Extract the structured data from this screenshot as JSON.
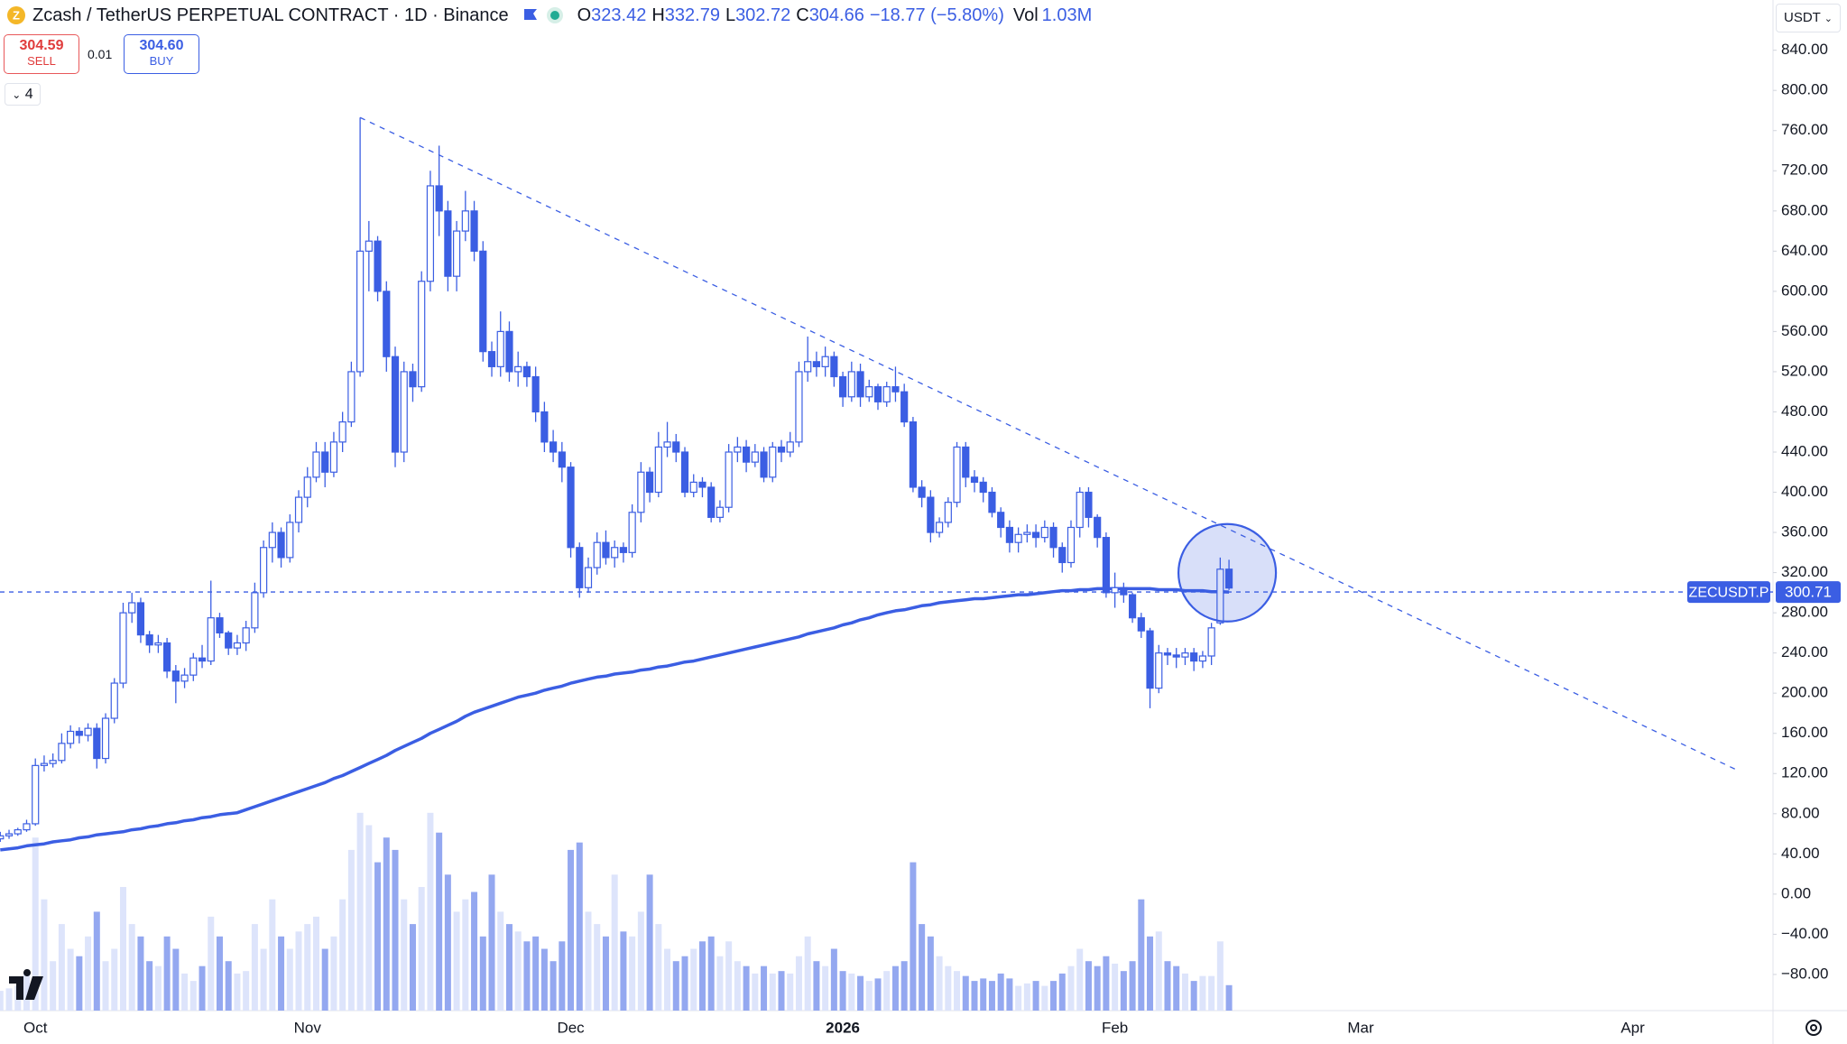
{
  "chart_data": {
    "type": "candlestick",
    "header": {
      "symbol": "Zcash / TetherUS PERPETUAL CONTRACT · 1D · Binance",
      "ohlc_prefixes": [
        "O",
        "H",
        "L",
        "C"
      ],
      "change": "−18.77 (−5.80%)",
      "vol_prefix": "Vol",
      "vol_value": "1.03M"
    },
    "trade": {
      "sell_price": "304.59",
      "sell": "SELL",
      "spread": "0.01",
      "buy_price": "304.60",
      "buy": "BUY"
    },
    "indicators_count": "4",
    "currency": "USDT",
    "price_label": "ZECUSDT.P",
    "up_color": "#ffffff",
    "down_color": "#3b5ee3",
    "volume_up_color": "#dde4fb",
    "volume_down_color": "#94a8f0",
    "grid": false,
    "ylim": [
      -116,
      890
    ],
    "yticks": [
      {
        "value": 840,
        "label": "840.00"
      },
      {
        "value": 800,
        "label": "800.00"
      },
      {
        "value": 760,
        "label": "760.00"
      },
      {
        "value": 720,
        "label": "720.00"
      },
      {
        "value": 680,
        "label": "680.00"
      },
      {
        "value": 640,
        "label": "640.00"
      },
      {
        "value": 600,
        "label": "600.00"
      },
      {
        "value": 560,
        "label": "560.00"
      },
      {
        "value": 520,
        "label": "520.00"
      },
      {
        "value": 480,
        "label": "480.00"
      },
      {
        "value": 440,
        "label": "440.00"
      },
      {
        "value": 400,
        "label": "400.00"
      },
      {
        "value": 360,
        "label": "360.00"
      },
      {
        "value": 320,
        "label": "320.00"
      },
      {
        "value": 280,
        "label": "280.00"
      },
      {
        "value": 240,
        "label": "240.00"
      },
      {
        "value": 200,
        "label": "200.00"
      },
      {
        "value": 160,
        "label": "160.00"
      },
      {
        "value": 120,
        "label": "120.00"
      },
      {
        "value": 80,
        "label": "80.00"
      },
      {
        "value": 40,
        "label": "40.00"
      },
      {
        "value": 0,
        "label": "0.00"
      },
      {
        "value": -40,
        "label": "−40.00"
      },
      {
        "value": -80,
        "label": "−80.00"
      }
    ],
    "categories": [
      null,
      null,
      null,
      null,
      "Oct",
      null,
      null,
      null,
      null,
      null,
      null,
      null,
      null,
      null,
      null,
      null,
      null,
      null,
      null,
      null,
      null,
      null,
      null,
      null,
      null,
      null,
      null,
      null,
      null,
      null,
      null,
      null,
      null,
      null,
      null,
      "Nov",
      null,
      null,
      null,
      null,
      null,
      null,
      null,
      null,
      null,
      null,
      null,
      null,
      null,
      null,
      null,
      null,
      null,
      null,
      null,
      null,
      null,
      null,
      null,
      null,
      null,
      null,
      null,
      null,
      null,
      "Dec",
      null,
      null,
      null,
      null,
      null,
      null,
      null,
      null,
      null,
      null,
      null,
      null,
      null,
      null,
      null,
      null,
      null,
      null,
      null,
      null,
      null,
      null,
      null,
      null,
      null,
      null,
      null,
      null,
      null,
      null,
      "2026",
      null,
      null,
      null,
      null,
      null,
      null,
      null,
      null,
      null,
      null,
      null,
      null,
      null,
      null,
      null,
      null,
      null,
      null,
      null,
      null,
      null,
      null,
      null,
      null,
      null,
      null,
      null,
      null,
      null,
      null,
      "Feb",
      null,
      null,
      null,
      null,
      null,
      null,
      null,
      null,
      null,
      null,
      null,
      null,
      null,
      null,
      null,
      null,
      null,
      null,
      null,
      null,
      null,
      null,
      null,
      null,
      null,
      null,
      null,
      "Mar",
      null,
      null,
      null,
      null,
      null,
      null,
      null,
      null,
      null,
      null,
      null,
      null,
      null,
      null,
      null,
      null,
      null,
      null,
      null,
      null,
      null,
      null,
      null,
      null,
      null,
      null,
      null,
      null,
      null,
      null,
      "Apr",
      null,
      null,
      null,
      null,
      null,
      null,
      null,
      null,
      null,
      null,
      null,
      null
    ],
    "open": [
      55,
      58,
      60,
      64,
      70,
      128,
      130,
      133,
      150,
      162,
      158,
      165,
      135,
      175,
      210,
      280,
      290,
      258,
      248,
      250,
      222,
      212,
      218,
      235,
      232,
      275,
      260,
      245,
      250,
      265,
      300,
      345,
      360,
      335,
      370,
      395,
      415,
      440,
      420,
      450,
      470,
      520,
      640,
      650,
      600,
      535,
      440,
      520,
      505,
      610,
      705,
      680,
      615,
      660,
      680,
      640,
      540,
      525,
      560,
      520,
      525,
      515,
      480,
      450,
      440,
      425,
      345,
      305,
      325,
      350,
      335,
      345,
      340,
      380,
      420,
      400,
      445,
      450,
      440,
      400,
      410,
      405,
      375,
      385,
      440,
      445,
      430,
      440,
      415,
      445,
      440,
      450,
      520,
      530,
      525,
      535,
      515,
      495,
      520,
      495,
      505,
      490,
      505,
      500,
      470,
      405,
      395,
      360,
      370,
      390,
      445,
      415,
      410,
      400,
      380,
      365,
      350,
      358,
      360,
      355,
      365,
      345,
      330,
      365,
      400,
      375,
      355,
      300,
      305,
      298,
      275,
      262,
      205,
      240,
      238,
      236,
      240,
      232,
      237,
      270,
      323.42,
      null,
      null,
      null,
      null,
      null,
      null,
      null,
      null,
      null,
      null,
      null,
      null,
      null,
      null,
      null,
      null,
      null,
      null,
      null,
      null,
      null,
      null,
      null,
      null,
      null,
      null,
      null,
      null,
      null,
      null,
      null,
      null,
      null,
      null,
      null,
      null,
      null,
      null,
      null,
      null,
      null,
      null,
      null,
      null,
      null,
      null,
      null,
      null,
      null,
      null,
      null,
      null,
      null,
      null,
      null,
      null,
      null,
      null
    ],
    "high": [
      62,
      64,
      66,
      74,
      135,
      138,
      140,
      160,
      168,
      166,
      170,
      170,
      180,
      215,
      290,
      300,
      295,
      262,
      258,
      255,
      228,
      225,
      240,
      248,
      312,
      280,
      262,
      258,
      272,
      310,
      352,
      370,
      365,
      378,
      402,
      425,
      450,
      450,
      460,
      480,
      530,
      773,
      670,
      655,
      610,
      545,
      530,
      528,
      620,
      720,
      745,
      690,
      670,
      700,
      690,
      650,
      550,
      580,
      570,
      540,
      530,
      525,
      490,
      462,
      450,
      430,
      350,
      335,
      360,
      362,
      352,
      350,
      388,
      430,
      425,
      460,
      470,
      458,
      445,
      418,
      415,
      410,
      392,
      448,
      455,
      452,
      448,
      445,
      450,
      452,
      460,
      530,
      555,
      540,
      545,
      540,
      520,
      530,
      528,
      512,
      508,
      510,
      525,
      508,
      475,
      412,
      402,
      375,
      395,
      450,
      450,
      422,
      415,
      405,
      385,
      372,
      365,
      368,
      368,
      372,
      370,
      350,
      372,
      405,
      405,
      378,
      360,
      320,
      310,
      300,
      280,
      265,
      248,
      245,
      245,
      245,
      245,
      242,
      270,
      335,
      332.79,
      null,
      null,
      null,
      null,
      null,
      null,
      null,
      null,
      null,
      null,
      null,
      null,
      null,
      null,
      null,
      null,
      null,
      null,
      null,
      null,
      null,
      null,
      null,
      null,
      null,
      null,
      null,
      null,
      null,
      null,
      null,
      null,
      null,
      null,
      null,
      null,
      null,
      null,
      null,
      null,
      null,
      null,
      null,
      null,
      null,
      null,
      null,
      null,
      null,
      null,
      null,
      null,
      null,
      null,
      null,
      null,
      null,
      null
    ],
    "low": [
      52,
      55,
      58,
      62,
      68,
      122,
      126,
      130,
      145,
      150,
      152,
      125,
      130,
      170,
      205,
      270,
      250,
      240,
      240,
      215,
      190,
      205,
      212,
      225,
      228,
      255,
      238,
      238,
      242,
      260,
      295,
      330,
      325,
      330,
      360,
      385,
      410,
      405,
      415,
      440,
      465,
      515,
      600,
      590,
      520,
      425,
      430,
      490,
      500,
      600,
      655,
      600,
      600,
      650,
      630,
      530,
      515,
      515,
      510,
      505,
      505,
      470,
      440,
      430,
      410,
      335,
      295,
      300,
      318,
      328,
      325,
      330,
      335,
      370,
      390,
      395,
      435,
      430,
      395,
      395,
      395,
      370,
      370,
      380,
      430,
      420,
      425,
      410,
      410,
      430,
      435,
      445,
      510,
      515,
      515,
      505,
      485,
      490,
      485,
      490,
      482,
      485,
      490,
      465,
      400,
      385,
      350,
      355,
      365,
      385,
      405,
      400,
      390,
      375,
      355,
      340,
      340,
      350,
      345,
      350,
      335,
      320,
      325,
      355,
      365,
      345,
      295,
      285,
      290,
      270,
      255,
      185,
      200,
      228,
      225,
      228,
      222,
      225,
      228,
      268,
      302.72,
      null,
      null,
      null,
      null,
      null,
      null,
      null,
      null,
      null,
      null,
      null,
      null,
      null,
      null,
      null,
      null,
      null,
      null,
      null,
      null,
      null,
      null,
      null,
      null,
      null,
      null,
      null,
      null,
      null,
      null,
      null,
      null,
      null,
      null,
      null,
      null,
      null,
      null,
      null,
      null,
      null,
      null,
      null,
      null,
      null,
      null,
      null,
      null,
      null,
      null,
      null,
      null,
      null,
      null,
      null,
      null,
      null,
      null
    ],
    "close": [
      58,
      60,
      64,
      70,
      128,
      130,
      133,
      150,
      162,
      158,
      165,
      135,
      175,
      210,
      280,
      290,
      258,
      248,
      250,
      222,
      212,
      218,
      235,
      232,
      275,
      260,
      245,
      250,
      265,
      300,
      345,
      360,
      335,
      370,
      395,
      415,
      440,
      420,
      450,
      470,
      520,
      640,
      650,
      600,
      535,
      440,
      520,
      505,
      610,
      705,
      680,
      615,
      660,
      680,
      640,
      540,
      525,
      560,
      520,
      525,
      515,
      480,
      450,
      440,
      425,
      345,
      305,
      325,
      350,
      335,
      345,
      340,
      380,
      420,
      400,
      445,
      450,
      440,
      400,
      410,
      405,
      375,
      385,
      440,
      445,
      430,
      440,
      415,
      445,
      440,
      450,
      520,
      530,
      525,
      535,
      515,
      495,
      520,
      495,
      505,
      490,
      505,
      500,
      470,
      405,
      395,
      360,
      370,
      390,
      445,
      415,
      410,
      400,
      380,
      365,
      350,
      358,
      360,
      355,
      365,
      345,
      330,
      365,
      400,
      375,
      355,
      300,
      305,
      298,
      275,
      262,
      205,
      240,
      238,
      236,
      240,
      232,
      237,
      265,
      323.42,
      304.66,
      null,
      null,
      null,
      null,
      null,
      null,
      null,
      null,
      null,
      null,
      null,
      null,
      null,
      null,
      null,
      null,
      null,
      null,
      null,
      null,
      null,
      null,
      null,
      null,
      null,
      null,
      null,
      null,
      null,
      null,
      null,
      null,
      null,
      null,
      null,
      null,
      null,
      null,
      null,
      null,
      null,
      null,
      null,
      null,
      null,
      null,
      null,
      null,
      null,
      null,
      null,
      null,
      null,
      null,
      null,
      null,
      null,
      null
    ],
    "volume": [
      0.8,
      0.9,
      1.0,
      1.5,
      7.0,
      4.5,
      2.0,
      3.5,
      2.5,
      2.2,
      3.0,
      4.0,
      2.0,
      2.5,
      5.0,
      3.5,
      3.0,
      2.0,
      1.8,
      3.0,
      2.5,
      1.5,
      1.2,
      1.8,
      3.8,
      3.0,
      2.0,
      1.5,
      1.6,
      3.5,
      2.5,
      4.5,
      3.0,
      2.5,
      3.2,
      3.5,
      3.8,
      2.5,
      3.0,
      4.5,
      6.5,
      8.0,
      7.5,
      6.0,
      7.0,
      6.5,
      4.5,
      3.5,
      5.0,
      8.0,
      7.2,
      5.5,
      4.0,
      4.5,
      4.8,
      3.0,
      5.5,
      4.0,
      3.5,
      3.2,
      2.8,
      3.0,
      2.5,
      2.0,
      2.8,
      6.5,
      6.8,
      4.0,
      3.5,
      3.0,
      5.5,
      3.2,
      3.0,
      4.0,
      5.5,
      3.5,
      2.5,
      2.0,
      2.2,
      2.5,
      2.8,
      3.0,
      2.2,
      2.8,
      2.0,
      1.8,
      1.5,
      1.8,
      1.5,
      1.6,
      1.5,
      2.2,
      3.0,
      2.0,
      1.8,
      2.5,
      1.6,
      1.5,
      1.4,
      1.2,
      1.3,
      1.6,
      1.8,
      2.0,
      6.0,
      3.5,
      3.0,
      2.2,
      1.8,
      1.6,
      1.4,
      1.2,
      1.3,
      1.2,
      1.5,
      1.3,
      1.0,
      1.1,
      1.2,
      1.0,
      1.2,
      1.5,
      1.8,
      2.5,
      2.0,
      1.8,
      2.2,
      1.9,
      1.6,
      2.0,
      4.5,
      3.0,
      3.2,
      2.0,
      1.8,
      1.5,
      1.2,
      1.4,
      1.4,
      2.8,
      1.03,
      null,
      null,
      null,
      null,
      null,
      null,
      null,
      null,
      null,
      null,
      null,
      null,
      null,
      null,
      null,
      null,
      null,
      null,
      null,
      null,
      null,
      null,
      null,
      null,
      null,
      null,
      null,
      null,
      null,
      null,
      null,
      null,
      null,
      null,
      null,
      null,
      null,
      null,
      null,
      null,
      null,
      null,
      null,
      null,
      null,
      null,
      null,
      null,
      null,
      null,
      null,
      null,
      null,
      null,
      null,
      null,
      null,
      null
    ],
    "ma": {
      "color": "#3b5ee3",
      "values": [
        44,
        45,
        46,
        48,
        49,
        50,
        52,
        53,
        54,
        56,
        57,
        59,
        60,
        61,
        62,
        64,
        65,
        67,
        68,
        70,
        71,
        73,
        74,
        76,
        77,
        79,
        80,
        81,
        84,
        87,
        90,
        93,
        96,
        99,
        102,
        105,
        108,
        111,
        115,
        118,
        122,
        126,
        130,
        134,
        138,
        143,
        147,
        151,
        155,
        160,
        164,
        168,
        172,
        177,
        181,
        184,
        187,
        190,
        193,
        196,
        198,
        200,
        203,
        205,
        207,
        210,
        212,
        214,
        216,
        217,
        219,
        220,
        221,
        223,
        224,
        226,
        227,
        229,
        231,
        232,
        234,
        236,
        238,
        240,
        242,
        244,
        246,
        248,
        250,
        252,
        254,
        256,
        259,
        261,
        263,
        265,
        268,
        270,
        273,
        275,
        278,
        280,
        282,
        283,
        285,
        287,
        288,
        290,
        291,
        292,
        293,
        294,
        294,
        295,
        296,
        297,
        298,
        298,
        299,
        300,
        301,
        302,
        302,
        303,
        303,
        304,
        304,
        304,
        304,
        304,
        304,
        304,
        303,
        303,
        303,
        302,
        302,
        302,
        301,
        301,
        300.71,
        null,
        null,
        null,
        null,
        null,
        null,
        null,
        null,
        null,
        null,
        null,
        null,
        null,
        null,
        null,
        null,
        null,
        null,
        null,
        null,
        null,
        null,
        null,
        null,
        null,
        null,
        null,
        null,
        null,
        null,
        null,
        null,
        null,
        null,
        null,
        null,
        null,
        null,
        null,
        null,
        null,
        null,
        null,
        null,
        null,
        null,
        null,
        null,
        null,
        null,
        null,
        null,
        null,
        null,
        null,
        null,
        null,
        null
      ]
    },
    "trendline": {
      "start": 773,
      "end": 123
    }
  }
}
